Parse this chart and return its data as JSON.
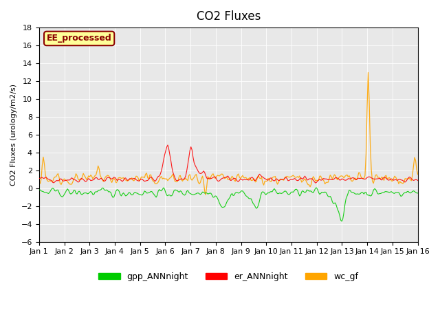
{
  "title": "CO2 Fluxes",
  "ylabel": "CO2 Fluxes (urology/m2/s)",
  "xlim": [
    0,
    15
  ],
  "ylim": [
    -6,
    18
  ],
  "yticks": [
    -6,
    -4,
    -2,
    0,
    2,
    4,
    6,
    8,
    10,
    12,
    14,
    16,
    18
  ],
  "xtick_labels": [
    "Jan 1",
    "Jan 2",
    "Jan 3",
    "Jan 4",
    "Jan 5",
    "Jan 6",
    "Jan 7",
    "Jan 8",
    "Jan 9",
    "Jan 10",
    "Jan 11",
    "Jan 12",
    "Jan 13",
    "Jan 14",
    "Jan 15",
    "Jan 16"
  ],
  "watermark_text": "EE_processed",
  "watermark_color": "#8B0000",
  "watermark_bg": "#FFFF99",
  "background_color": "#E8E8E8",
  "gpp_color": "#00CC00",
  "er_color": "#FF0000",
  "wc_color": "#FFA500",
  "legend_labels": [
    "gpp_ANNnight",
    "er_ANNnight",
    "wc_gf"
  ],
  "n_points": 360,
  "seed": 42
}
